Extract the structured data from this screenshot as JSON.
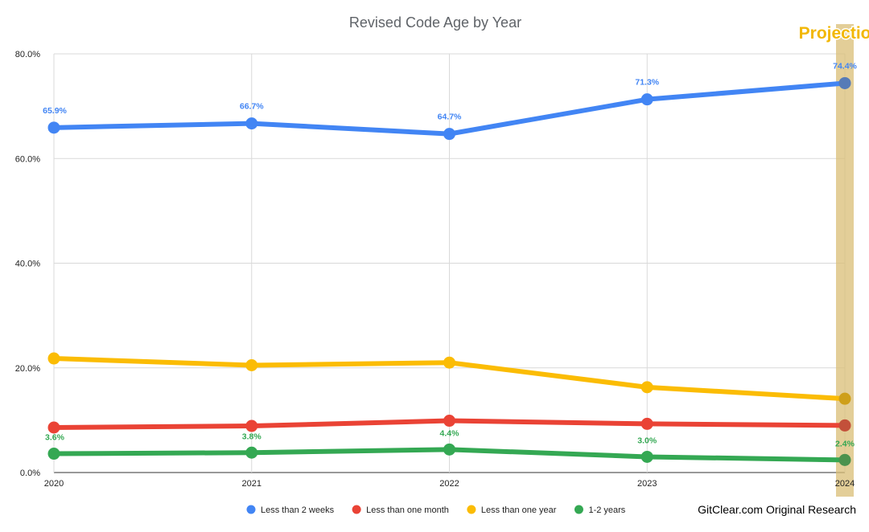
{
  "chart_data": {
    "type": "line",
    "title": "Revised Code Age by Year",
    "categories": [
      "2020",
      "2021",
      "2022",
      "2023",
      "2024"
    ],
    "ylim": [
      0,
      80
    ],
    "yticks": [
      "0.0%",
      "20.0%",
      "40.0%",
      "60.0%",
      "80.0%"
    ],
    "ytick_values": [
      0,
      20,
      40,
      60,
      80
    ],
    "grid": true,
    "legend_position": "bottom",
    "highlight": {
      "category": "2024",
      "label": "Projection",
      "color": "#d9bd75"
    },
    "series": [
      {
        "name": "Less than 2 weeks",
        "color": "#4285f4",
        "values": [
          65.9,
          66.7,
          64.7,
          71.3,
          74.4
        ],
        "labels": [
          "65.9%",
          "66.7%",
          "64.7%",
          "71.3%",
          "74.4%"
        ]
      },
      {
        "name": "Less than one month",
        "color": "#ea4335",
        "values": [
          8.6,
          8.9,
          9.9,
          9.3,
          9.0
        ],
        "labels": null
      },
      {
        "name": "Less than one year",
        "color": "#fbbc04",
        "values": [
          21.8,
          20.5,
          21.0,
          16.3,
          14.1
        ],
        "labels": null
      },
      {
        "name": "1-2 years",
        "color": "#34a853",
        "values": [
          3.6,
          3.8,
          4.4,
          3.0,
          2.4
        ],
        "labels": [
          "3.6%",
          "3.8%",
          "4.4%",
          "3.0%",
          "2.4%"
        ]
      }
    ],
    "footer": "GitClear.com Original Research"
  }
}
